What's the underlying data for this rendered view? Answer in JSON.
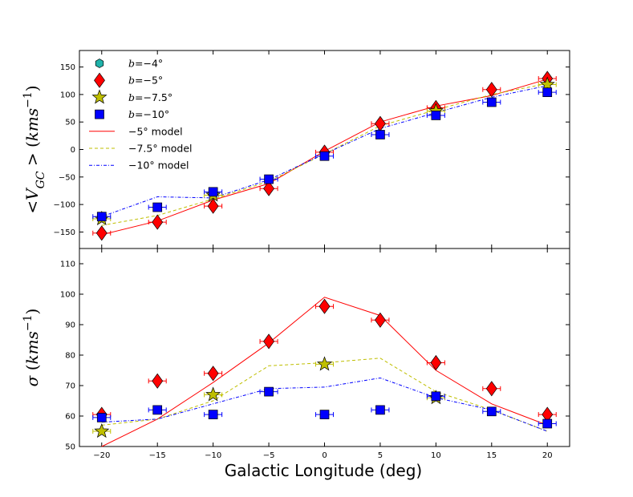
{
  "chart_data": [
    {
      "type": "scatter",
      "panel": "top",
      "ylabel": "<V_GC> (kms^-1)",
      "ylabel_parts": {
        "open": "<",
        "main": "V",
        "sub": "GC",
        "close": ">",
        "unit_open": "(",
        "unit": "kms",
        "sup": "−1",
        "unit_close": ")"
      },
      "xlim": [
        -22,
        22
      ],
      "ylim": [
        -180,
        180
      ],
      "yticks": [
        -150,
        -100,
        -50,
        0,
        50,
        100,
        150
      ],
      "ytick_labels": [
        "−150",
        "−100",
        "−50",
        "0",
        "50",
        "100",
        "150"
      ],
      "series": [
        {
          "name": "b=−4°",
          "marker": "hexagon",
          "color": "#20b2aa",
          "x": [],
          "y": []
        },
        {
          "name": "b=−5°",
          "marker": "diamond",
          "color": "#ff0000",
          "x": [
            -20,
            -15,
            -10,
            -5,
            0,
            5,
            10,
            15,
            20
          ],
          "y": [
            -152,
            -132,
            -103,
            -71,
            -5,
            47,
            76,
            109,
            129
          ]
        },
        {
          "name": "b=−7.5°",
          "marker": "star",
          "color": "#bfbf00",
          "x": [
            -20,
            -10,
            10,
            20
          ],
          "y": [
            -126,
            -83,
            70,
            118
          ]
        },
        {
          "name": "b=−10°",
          "marker": "square",
          "color": "#0000ff",
          "x": [
            -20,
            -15,
            -10,
            -5,
            0,
            5,
            10,
            15,
            20
          ],
          "y": [
            -122,
            -105,
            -77,
            -54,
            -12,
            27,
            62,
            86,
            104
          ]
        }
      ],
      "models": [
        {
          "name": "−5° model",
          "style": "solid",
          "color": "#ff0000",
          "x": [
            -20,
            -15,
            -10,
            -5,
            0,
            5,
            10,
            15,
            20
          ],
          "y": [
            -155,
            -130,
            -92,
            -62,
            -3,
            50,
            79,
            98,
            128
          ]
        },
        {
          "name": "−7.5° model",
          "style": "dashed",
          "color": "#bfbf00",
          "x": [
            -20,
            -15,
            -10,
            -5,
            0,
            5,
            10,
            15,
            20
          ],
          "y": [
            -138,
            -120,
            -90,
            -58,
            -8,
            43,
            72,
            100,
            120
          ]
        },
        {
          "name": "−10° model",
          "style": "dashdot",
          "color": "#0000ff",
          "x": [
            -20,
            -15,
            -10,
            -5,
            0,
            5,
            10,
            15,
            20
          ],
          "y": [
            -122,
            -86,
            -88,
            -55,
            -8,
            38,
            67,
            95,
            116
          ]
        }
      ],
      "legend": "top-left"
    },
    {
      "type": "scatter",
      "panel": "bottom",
      "ylabel": "σ (kms^-1)",
      "ylabel_parts": {
        "open": "",
        "main": "σ",
        "sub": "",
        "close": "",
        "unit_open": "(",
        "unit": "kms",
        "sup": "−1",
        "unit_close": ")"
      },
      "xlabel": "Galactic Longitude (deg)",
      "xlim": [
        -22,
        22
      ],
      "ylim": [
        50,
        115
      ],
      "yticks": [
        50,
        60,
        70,
        80,
        90,
        100,
        110
      ],
      "ytick_labels": [
        "50",
        "60",
        "70",
        "80",
        "90",
        "100",
        "110"
      ],
      "xticks": [
        -20,
        -15,
        -10,
        -5,
        0,
        5,
        10,
        15,
        20
      ],
      "xtick_labels": [
        "−20",
        "−15",
        "−10",
        "−5",
        "0",
        "5",
        "10",
        "15",
        "20"
      ],
      "series": [
        {
          "name": "b=−5°",
          "marker": "diamond",
          "color": "#ff0000",
          "x": [
            -20,
            -15,
            -10,
            -5,
            0,
            5,
            10,
            15,
            20
          ],
          "y": [
            60.5,
            71.5,
            74,
            84.5,
            96,
            91.5,
            77.5,
            69,
            60.5
          ]
        },
        {
          "name": "b=−7.5°",
          "marker": "star",
          "color": "#bfbf00",
          "x": [
            -20,
            -10,
            0,
            10
          ],
          "y": [
            55,
            67,
            77,
            66
          ]
        },
        {
          "name": "b=−10°",
          "marker": "square",
          "color": "#0000ff",
          "x": [
            -20,
            -15,
            -10,
            -5,
            0,
            5,
            10,
            15,
            20
          ],
          "y": [
            59.5,
            62,
            60.5,
            68,
            60.5,
            62,
            66.5,
            61.5,
            57.5
          ]
        }
      ],
      "models": [
        {
          "name": "−5° model",
          "style": "solid",
          "color": "#ff0000",
          "x": [
            -20,
            -15,
            -10,
            -5,
            0,
            5,
            10,
            15,
            20
          ],
          "y": [
            50,
            59,
            71,
            84,
            99,
            93,
            75,
            64,
            57
          ]
        },
        {
          "name": "−7.5° model",
          "style": "dashed",
          "color": "#bfbf00",
          "x": [
            -20,
            -15,
            -10,
            -5,
            0,
            5,
            10,
            15,
            20
          ],
          "y": [
            57,
            59,
            65,
            76.5,
            77.5,
            79,
            68,
            62,
            55
          ]
        },
        {
          "name": "−10° model",
          "style": "dashdot",
          "color": "#0000ff",
          "x": [
            -20,
            -15,
            -10,
            -5,
            0,
            5,
            10,
            15,
            20
          ],
          "y": [
            58,
            59,
            64,
            69,
            69.5,
            72.5,
            66,
            62,
            55
          ]
        }
      ]
    }
  ],
  "legend": {
    "entries": [
      {
        "marker": "hexagon",
        "color": "#20b2aa",
        "label_prefix": "b",
        "label_suffix": "=−4°"
      },
      {
        "marker": "diamond",
        "color": "#ff0000",
        "label_prefix": "b",
        "label_suffix": "=−5°"
      },
      {
        "marker": "star",
        "color": "#bfbf00",
        "label_prefix": "b",
        "label_suffix": "=−7.5°"
      },
      {
        "marker": "square",
        "color": "#0000ff",
        "label_prefix": "b",
        "label_suffix": "=−10°"
      },
      {
        "line": "solid",
        "color": "#ff0000",
        "label_prefix": "",
        "label_suffix": "−5° model"
      },
      {
        "line": "dashed",
        "color": "#bfbf00",
        "label_prefix": "",
        "label_suffix": "−7.5° model"
      },
      {
        "line": "dashdot",
        "color": "#0000ff",
        "label_prefix": "",
        "label_suffix": "−10° model"
      }
    ]
  }
}
